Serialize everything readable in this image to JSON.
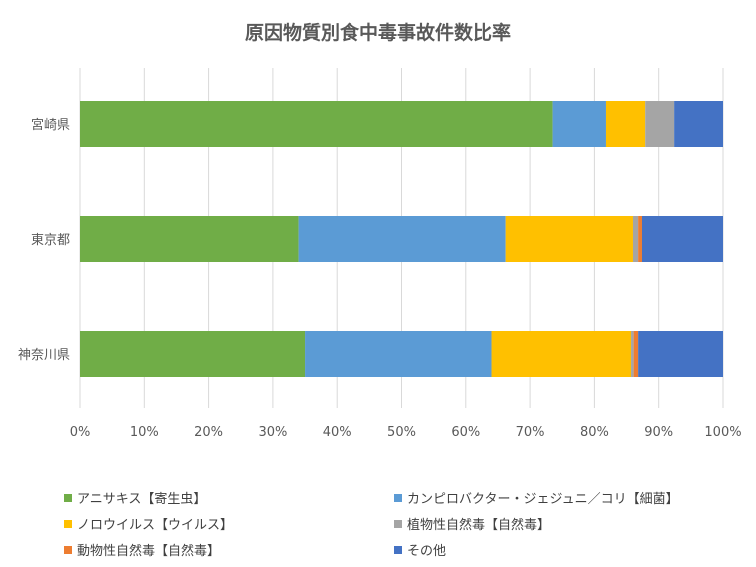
{
  "chart_data": {
    "type": "bar",
    "orientation": "horizontal",
    "stacked": "percent",
    "title": "原因物質別食中毒事故件数比率",
    "categories": [
      "宮崎県",
      "東京都",
      "神奈川県"
    ],
    "x_tick_labels": [
      "0%",
      "10%",
      "20%",
      "30%",
      "40%",
      "50%",
      "60%",
      "70%",
      "80%",
      "90%",
      "100%"
    ],
    "xlim": [
      0,
      100
    ],
    "grid": "vertical",
    "legend_position": "bottom",
    "series": [
      {
        "name": "アニサキス【寄生虫】",
        "color": "#70ad47",
        "values": [
          73.5,
          34.0,
          35.0
        ]
      },
      {
        "name": "カンピロバクター・ジェジュニ／コリ【細菌】",
        "color": "#5b9bd5",
        "values": [
          8.3,
          32.2,
          29.0
        ]
      },
      {
        "name": "ノロウイルス【ウイルス】",
        "color": "#ffc000",
        "values": [
          6.1,
          19.8,
          21.7
        ]
      },
      {
        "name": "植物性自然毒【自然毒】",
        "color": "#a5a5a5",
        "values": [
          4.5,
          0.8,
          0.4
        ]
      },
      {
        "name": "動物性自然毒【自然毒】",
        "color": "#ed7d31",
        "values": [
          0.0,
          0.6,
          0.7
        ]
      },
      {
        "name": "その他",
        "color": "#4472c4",
        "values": [
          7.6,
          12.6,
          13.2
        ]
      }
    ]
  }
}
